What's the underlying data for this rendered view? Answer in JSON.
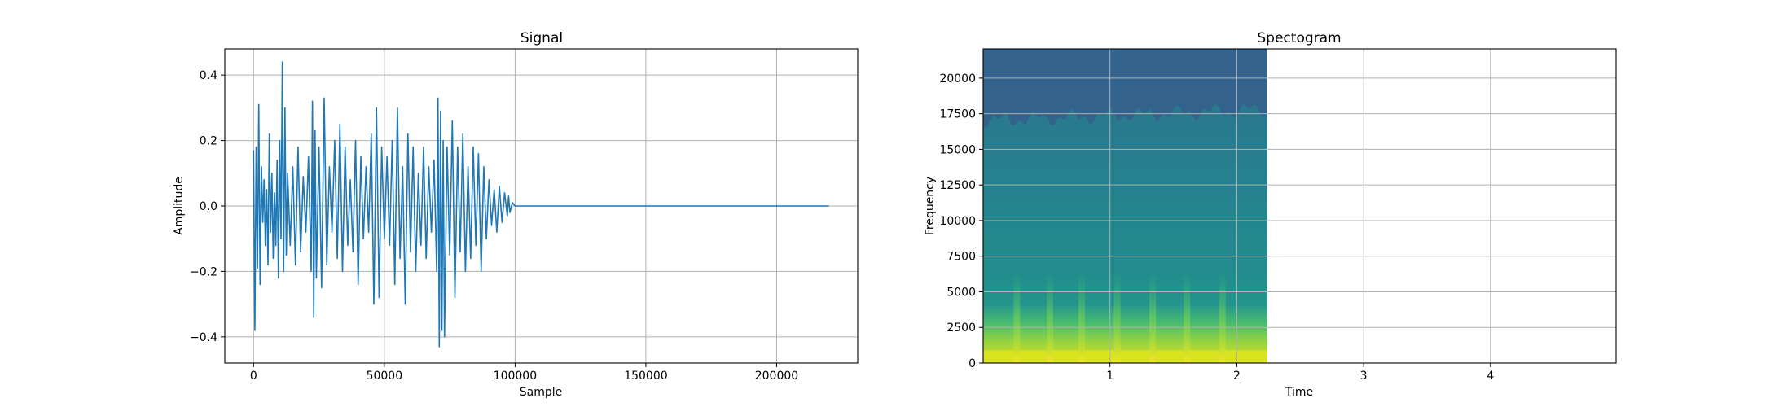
{
  "chart_data": [
    {
      "type": "line",
      "title": "Signal",
      "xlabel": "Sample",
      "ylabel": "Amplitude",
      "xlim": [
        -11000,
        231000
      ],
      "ylim": [
        -0.48,
        0.48
      ],
      "xticks": [
        0,
        50000,
        100000,
        150000,
        200000
      ],
      "xtick_labels": [
        "0",
        "50000",
        "100000",
        "150000",
        "200000"
      ],
      "yticks": [
        -0.4,
        -0.2,
        0.0,
        0.2,
        0.4
      ],
      "ytick_labels": [
        "−0.4",
        "−0.2",
        "0.0",
        "0.2",
        "0.4"
      ],
      "grid": true,
      "line_color": "#1f77b4",
      "series": [
        {
          "x": [
            0,
            500,
            1000,
            1500,
            2000,
            2500,
            3000,
            3500,
            4000,
            4500,
            5000,
            5500,
            6000,
            6500,
            7000,
            7500,
            8000,
            8500,
            9000,
            9500,
            10000,
            10500,
            11000,
            11500,
            12000,
            12500,
            13000,
            14000,
            15000,
            16000,
            17000,
            18000,
            19000,
            20000,
            21000,
            22000,
            22500,
            23000,
            23500,
            24000,
            25000,
            26000,
            27000,
            28000,
            29000,
            30000,
            31000,
            32000,
            33000,
            34000,
            35000,
            36000,
            37000,
            38000,
            39000,
            40000,
            41000,
            42000,
            43000,
            44000,
            45000,
            46000,
            47000,
            48000,
            49000,
            50000,
            51000,
            52000,
            53000,
            54000,
            55000,
            56000,
            57000,
            58000,
            59000,
            60000,
            61000,
            62000,
            63000,
            64000,
            65000,
            66000,
            67000,
            68000,
            69000,
            70000,
            70500,
            71000,
            71500,
            72000,
            72500,
            73000,
            74000,
            75000,
            76000,
            77000,
            78000,
            79000,
            80000,
            81000,
            82000,
            83000,
            84000,
            85000,
            86000,
            87000,
            88000,
            89000,
            90000,
            91000,
            92000,
            93000,
            94000,
            95000,
            96000,
            97000,
            97500,
            98000,
            99000,
            100000,
            220000
          ],
          "y": [
            0.17,
            -0.38,
            0.18,
            -0.19,
            0.31,
            -0.24,
            0.12,
            -0.05,
            0.08,
            -0.12,
            0.05,
            -0.18,
            0.22,
            -0.08,
            0.1,
            -0.16,
            0.04,
            -0.12,
            0.14,
            -0.22,
            0.2,
            -0.1,
            0.44,
            -0.2,
            0.3,
            -0.15,
            0.1,
            -0.12,
            0.12,
            -0.18,
            0.18,
            -0.14,
            0.09,
            -0.08,
            0.15,
            -0.2,
            0.32,
            -0.34,
            0.23,
            -0.22,
            0.18,
            -0.25,
            0.33,
            -0.18,
            0.12,
            -0.08,
            0.2,
            -0.16,
            0.25,
            -0.2,
            0.18,
            -0.12,
            0.08,
            -0.14,
            0.2,
            -0.24,
            0.15,
            -0.1,
            0.12,
            -0.08,
            0.22,
            -0.3,
            0.3,
            -0.28,
            0.18,
            -0.1,
            0.15,
            -0.12,
            0.2,
            -0.24,
            0.3,
            -0.16,
            0.12,
            -0.3,
            0.22,
            -0.14,
            0.18,
            -0.2,
            0.1,
            -0.12,
            0.18,
            -0.16,
            0.12,
            -0.08,
            0.14,
            -0.2,
            0.33,
            -0.43,
            0.29,
            -0.38,
            0.2,
            -0.4,
            0.18,
            -0.15,
            0.26,
            -0.28,
            0.18,
            -0.14,
            0.22,
            -0.2,
            0.12,
            -0.16,
            0.18,
            -0.12,
            0.16,
            -0.2,
            0.12,
            -0.1,
            0.08,
            -0.06,
            0.05,
            -0.08,
            0.06,
            -0.05,
            0.04,
            -0.03,
            0.03,
            -0.02,
            0.01,
            0.0,
            0.0
          ]
        }
      ]
    },
    {
      "type": "heatmap",
      "title": "Spectogram",
      "xlabel": "Time",
      "ylabel": "Frequency",
      "xlim": [
        0.0,
        4.99
      ],
      "ylim": [
        0,
        22050
      ],
      "xticks": [
        1,
        2,
        3,
        4
      ],
      "xtick_labels": [
        "1",
        "2",
        "3",
        "4"
      ],
      "yticks": [
        0,
        2500,
        5000,
        7500,
        10000,
        12500,
        15000,
        17500,
        20000
      ],
      "ytick_labels": [
        "0",
        "2500",
        "5000",
        "7500",
        "10000",
        "12500",
        "15000",
        "17500",
        "20000"
      ],
      "data_extent_x": [
        0.0,
        2.24
      ],
      "grid": true,
      "colormap": "viridis",
      "onset_times": [
        0.26,
        0.52,
        0.77,
        1.05,
        1.33,
        1.6,
        1.88
      ],
      "band_colors": {
        "top_band": "#33638d",
        "mid_band": "#2a788e",
        "low_band": "#2a9a8a",
        "green": "#4fc46a",
        "yellow": "#d9e21e"
      }
    }
  ]
}
